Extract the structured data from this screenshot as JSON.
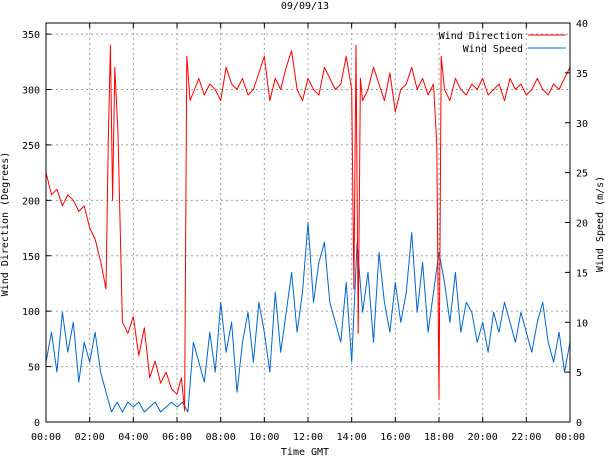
{
  "chart_data": {
    "type": "line",
    "title": "09/09/13",
    "xlabel": "Time GMT",
    "ylabel_left": "Wind Direction (Degrees)",
    "ylabel_right": "Wind Speed (m/s)",
    "x_ticks": [
      "00:00",
      "02:00",
      "04:00",
      "06:00",
      "08:00",
      "10:00",
      "12:00",
      "14:00",
      "16:00",
      "18:00",
      "20:00",
      "22:00",
      "00:00"
    ],
    "x_range_hours": [
      0,
      24
    ],
    "y_left": {
      "range": [
        0,
        360
      ],
      "ticks": [
        0,
        50,
        100,
        150,
        200,
        250,
        300,
        350
      ]
    },
    "y_right": {
      "range": [
        0,
        40
      ],
      "ticks": [
        0,
        5,
        10,
        15,
        20,
        25,
        30,
        35,
        40
      ]
    },
    "grid": true,
    "legend_position": "top-right",
    "series": [
      {
        "name": "Wind Direction",
        "axis": "left",
        "color": "#ff0000",
        "x_hours": [
          0,
          0.25,
          0.5,
          0.75,
          1.0,
          1.25,
          1.5,
          1.75,
          2.0,
          2.25,
          2.5,
          2.75,
          2.85,
          2.95,
          3.05,
          3.15,
          3.3,
          3.5,
          3.75,
          4.0,
          4.25,
          4.5,
          4.75,
          5.0,
          5.25,
          5.5,
          5.75,
          6.0,
          6.2,
          6.35,
          6.45,
          6.6,
          6.8,
          7.0,
          7.25,
          7.5,
          7.75,
          8.0,
          8.25,
          8.5,
          8.75,
          9.0,
          9.25,
          9.5,
          9.75,
          10.0,
          10.25,
          10.5,
          10.75,
          11.0,
          11.25,
          11.5,
          11.75,
          12.0,
          12.25,
          12.5,
          12.75,
          13.0,
          13.25,
          13.5,
          13.75,
          14.0,
          14.1,
          14.2,
          14.3,
          14.4,
          14.5,
          14.75,
          15.0,
          15.25,
          15.5,
          15.75,
          16.0,
          16.25,
          16.5,
          16.75,
          17.0,
          17.25,
          17.5,
          17.75,
          17.9,
          18.0,
          18.1,
          18.25,
          18.5,
          18.75,
          19.0,
          19.25,
          19.5,
          19.75,
          20.0,
          20.25,
          20.5,
          20.75,
          21.0,
          21.25,
          21.5,
          21.75,
          22.0,
          22.25,
          22.5,
          22.75,
          23.0,
          23.25,
          23.5,
          23.75,
          24.0
        ],
        "values": [
          225,
          205,
          210,
          195,
          205,
          200,
          190,
          195,
          175,
          165,
          145,
          120,
          250,
          340,
          200,
          320,
          260,
          90,
          80,
          95,
          60,
          85,
          40,
          55,
          35,
          45,
          30,
          25,
          40,
          10,
          330,
          290,
          300,
          310,
          295,
          305,
          300,
          290,
          320,
          305,
          300,
          310,
          295,
          300,
          315,
          330,
          290,
          310,
          300,
          320,
          335,
          300,
          290,
          310,
          300,
          295,
          320,
          310,
          300,
          305,
          330,
          300,
          120,
          340,
          80,
          310,
          290,
          300,
          320,
          305,
          290,
          315,
          280,
          300,
          305,
          320,
          300,
          310,
          295,
          305,
          250,
          20,
          330,
          300,
          290,
          310,
          300,
          295,
          305,
          300,
          310,
          295,
          300,
          305,
          290,
          310,
          300,
          305,
          295,
          300,
          310,
          300,
          295,
          305,
          300,
          310,
          320
        ]
      },
      {
        "name": "Wind Speed",
        "axis": "right",
        "color": "#0066cc",
        "x_hours": [
          0,
          0.25,
          0.5,
          0.75,
          1.0,
          1.25,
          1.5,
          1.75,
          2.0,
          2.25,
          2.5,
          2.75,
          3.0,
          3.25,
          3.5,
          3.75,
          4.0,
          4.25,
          4.5,
          4.75,
          5.0,
          5.25,
          5.5,
          5.75,
          6.0,
          6.25,
          6.5,
          6.75,
          7.0,
          7.25,
          7.5,
          7.75,
          8.0,
          8.25,
          8.5,
          8.75,
          9.0,
          9.25,
          9.5,
          9.75,
          10.0,
          10.25,
          10.5,
          10.75,
          11.0,
          11.25,
          11.5,
          11.75,
          12.0,
          12.25,
          12.5,
          12.75,
          13.0,
          13.25,
          13.5,
          13.75,
          14.0,
          14.25,
          14.5,
          14.75,
          15.0,
          15.25,
          15.5,
          15.75,
          16.0,
          16.25,
          16.5,
          16.75,
          17.0,
          17.25,
          17.5,
          17.75,
          18.0,
          18.25,
          18.5,
          18.75,
          19.0,
          19.25,
          19.5,
          19.75,
          20.0,
          20.25,
          20.5,
          20.75,
          21.0,
          21.25,
          21.5,
          21.75,
          22.0,
          22.25,
          22.5,
          22.75,
          23.0,
          23.25,
          23.5,
          23.75,
          24.0
        ],
        "values": [
          6,
          9,
          5,
          11,
          7,
          10,
          4,
          8,
          6,
          9,
          5,
          3,
          1,
          2,
          1,
          2,
          1.5,
          2,
          1,
          1.5,
          2,
          1,
          1.5,
          2,
          1.5,
          2,
          1,
          8,
          6,
          4,
          9,
          5,
          12,
          7,
          10,
          3,
          8,
          11,
          6,
          12,
          9,
          5,
          13,
          7,
          11,
          15,
          9,
          13,
          20,
          12,
          16,
          18,
          12,
          10,
          8,
          14,
          6,
          18,
          11,
          15,
          8,
          17,
          12,
          9,
          14,
          10,
          13,
          19,
          11,
          16,
          9,
          13,
          17,
          14,
          10,
          15,
          9,
          12,
          11,
          8,
          10,
          7,
          11,
          9,
          12,
          10,
          8,
          11,
          9,
          7,
          10,
          12,
          8,
          6,
          9,
          5,
          8
        ]
      }
    ]
  }
}
